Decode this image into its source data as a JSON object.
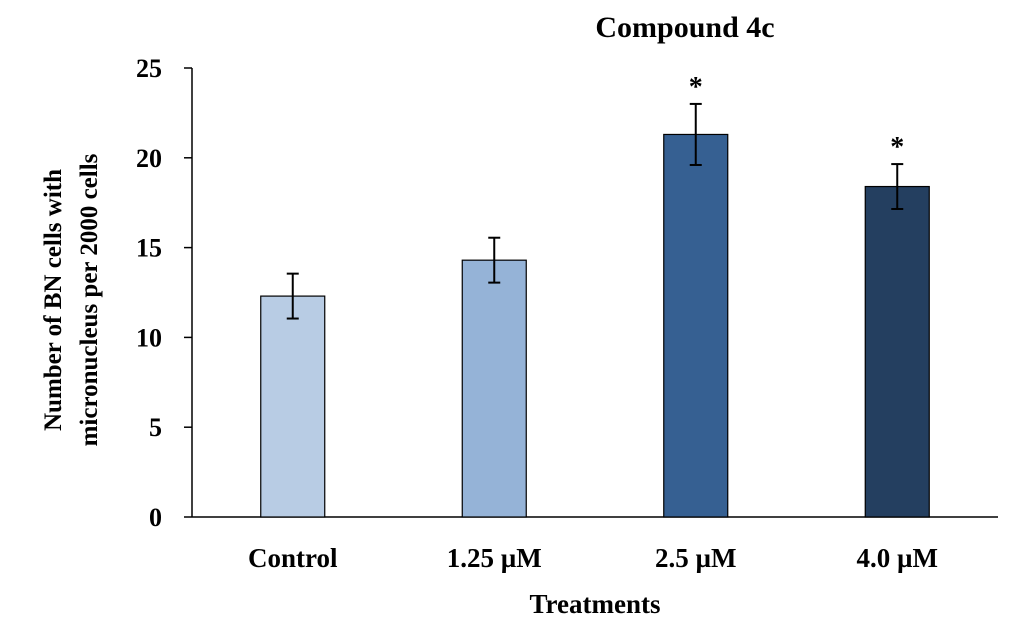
{
  "chart_data": {
    "type": "bar",
    "title": "Compound 4c",
    "xlabel": "Treatments",
    "ylabel_lines": [
      "Number of BN cells with",
      "micronucleus per 2000 cells"
    ],
    "categories": [
      "Control",
      "1.25 µM",
      "2.5 µM",
      "4.0 µM"
    ],
    "values": [
      12.3,
      14.3,
      21.3,
      18.4
    ],
    "errors": [
      1.25,
      1.25,
      1.7,
      1.25
    ],
    "annotations": [
      "",
      "",
      "*",
      "*"
    ],
    "colors": [
      "#b8cce4",
      "#95b3d7",
      "#366092",
      "#243f60"
    ],
    "ylim": [
      0,
      25
    ],
    "yticks": [
      0,
      5,
      10,
      15,
      20,
      25
    ],
    "grid": false
  }
}
